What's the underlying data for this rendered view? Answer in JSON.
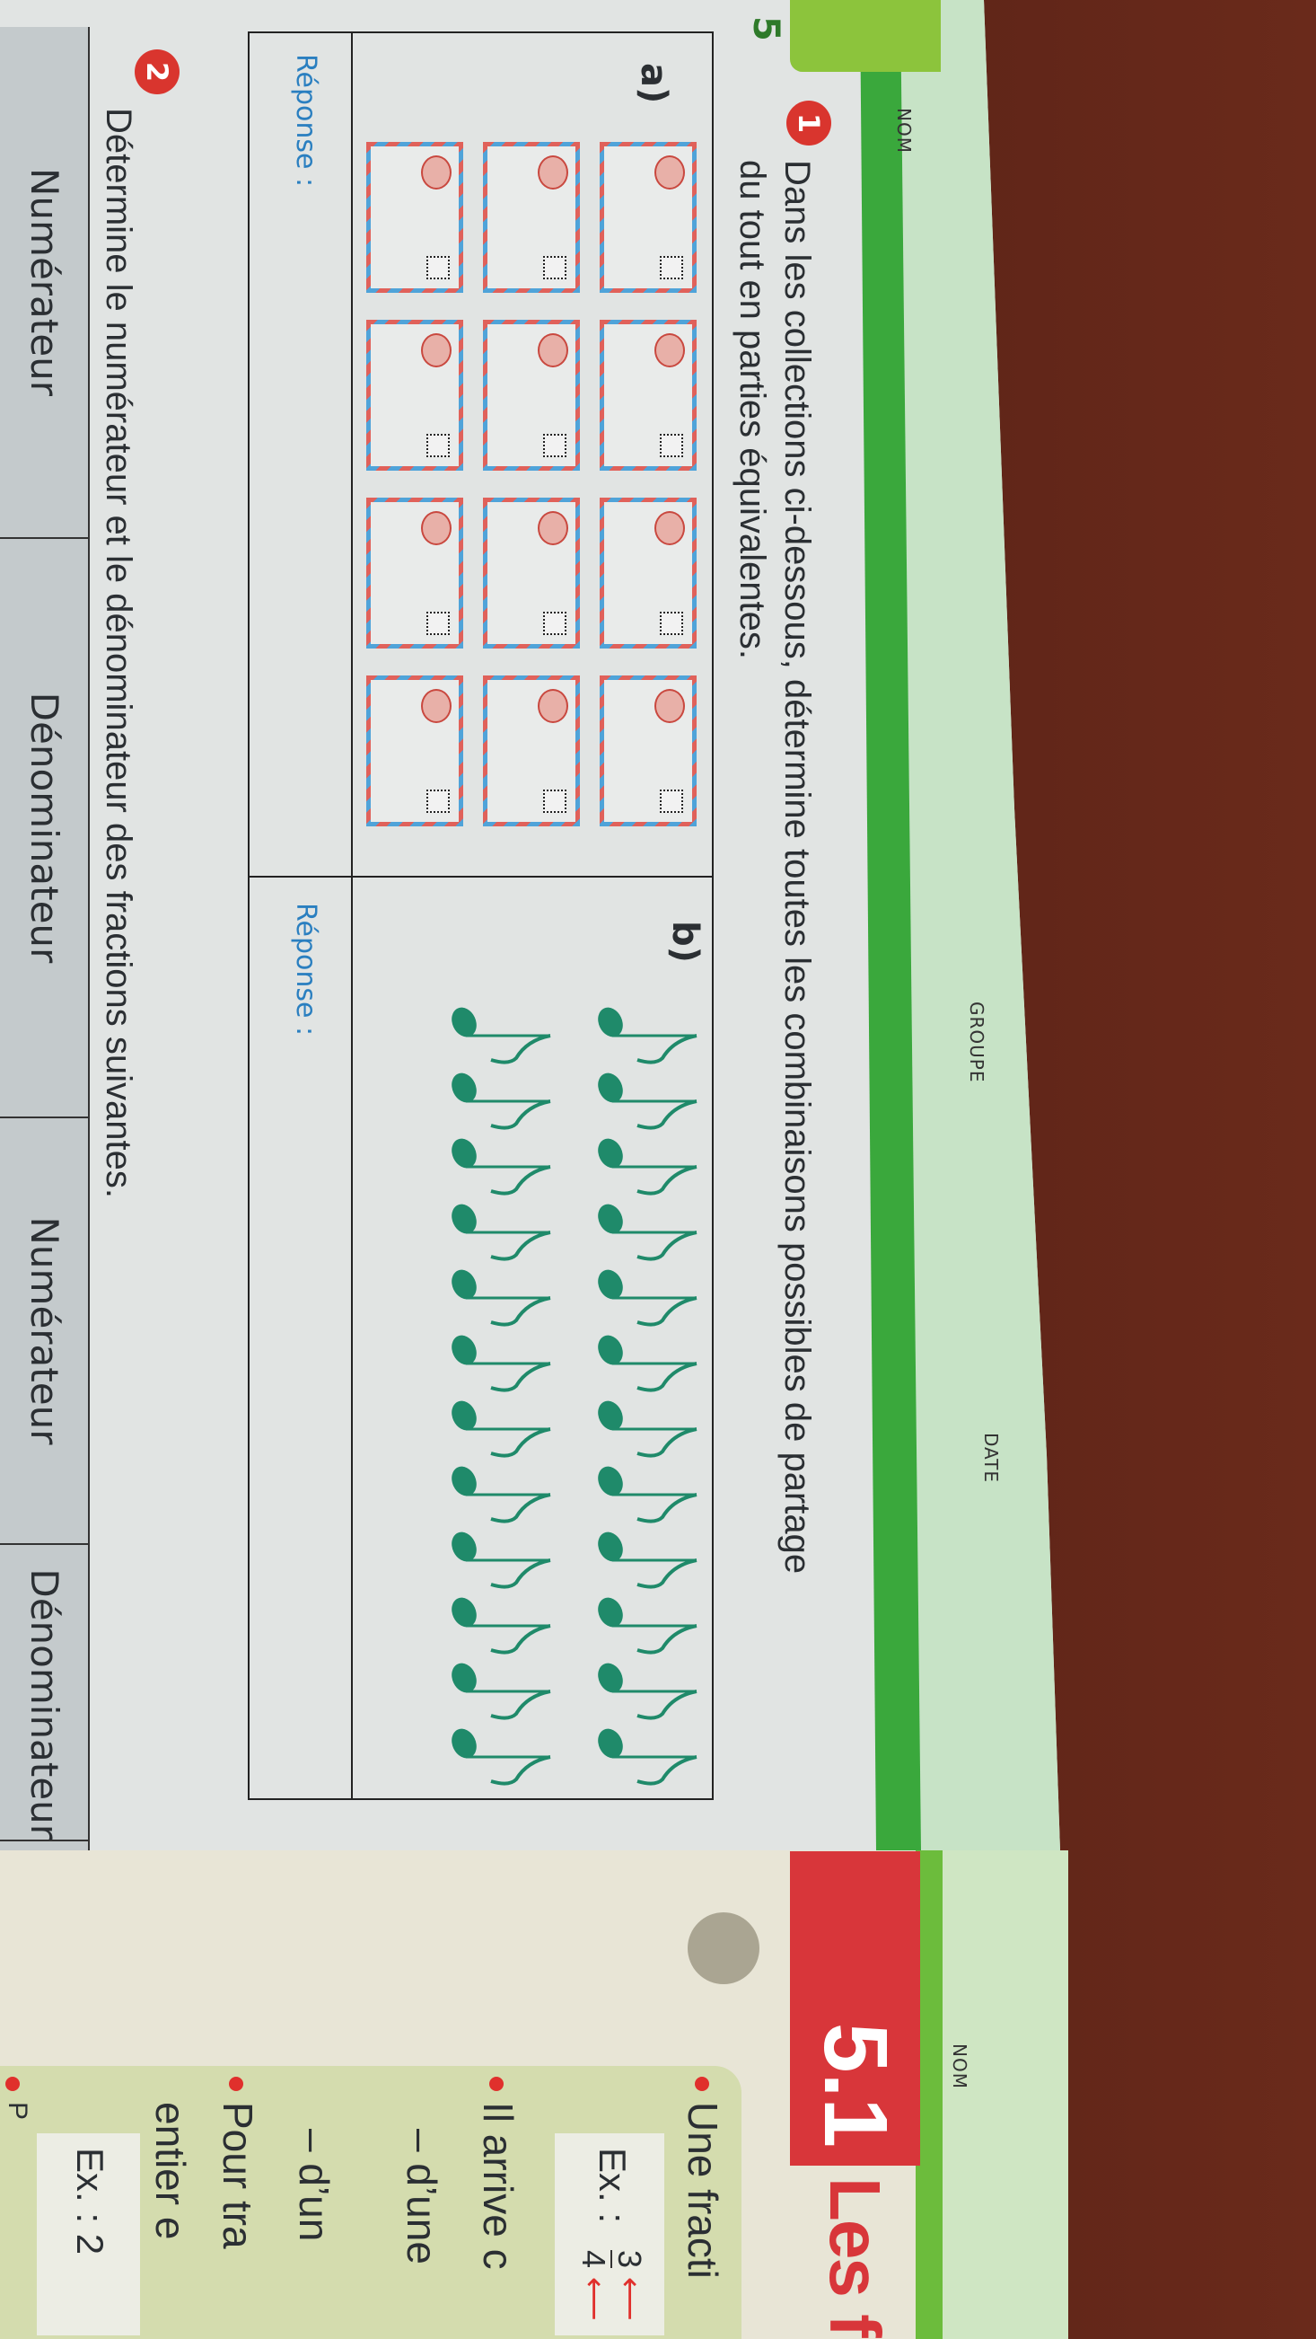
{
  "left_page": {
    "tab_number": "5",
    "header": {
      "name_label": "NOM",
      "group_label": "GROUPE",
      "date_label": "DATE"
    },
    "exercise1": {
      "number": "1",
      "instruction_line1": "Dans les collections ci-dessous, détermine toutes les combinaisons possibles de partage",
      "instruction_line2": "du tout en parties équivalentes.",
      "part_a": {
        "label": "a)",
        "answer_label": "Réponse :",
        "envelope_count": 12
      },
      "part_b": {
        "label": "b)",
        "answer_label": "Réponse :",
        "eighth_note_count": 24
      }
    },
    "exercise2": {
      "number": "2",
      "instruction": "Détermine le numérateur et le dénominateur des fractions suivantes.",
      "table_headers": [
        "Numérateur",
        "Dénominateur",
        "Numérateur",
        "Dénominateur"
      ]
    }
  },
  "right_page": {
    "header": {
      "name_label": "NOM"
    },
    "section_number": "5.1",
    "section_title": "Les f",
    "lines": {
      "bullet1": "Une fracti",
      "example1_label": "Ex. :",
      "example1_numerator": "3",
      "example1_denominator": "4",
      "bullet2": "Il arrive c",
      "dash1": "– d’une",
      "dash2": "– d’un",
      "bullet3_line1": "Pour tra",
      "bullet3_line2": "entier e",
      "example2": "Ex. :  2",
      "bullet4": "P"
    }
  },
  "colors": {
    "accent_red": "#d8363a",
    "header_green": "#3aa83c",
    "note_green": "#1f8a6a",
    "response_blue": "#2a7fc0"
  }
}
